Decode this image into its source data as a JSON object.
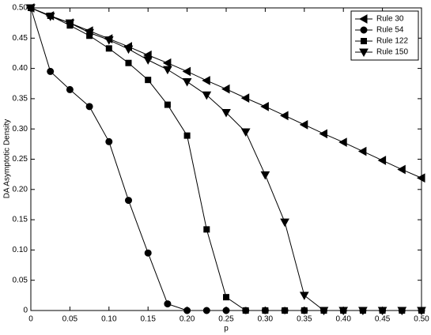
{
  "chart_data": {
    "type": "line",
    "xlabel": "p",
    "ylabel": "DA Asymptotic Density",
    "x": [
      0,
      0.025,
      0.05,
      0.075,
      0.1,
      0.125,
      0.15,
      0.175,
      0.2,
      0.225,
      0.25,
      0.275,
      0.3,
      0.325,
      0.35,
      0.375,
      0.4,
      0.425,
      0.45,
      0.475,
      0.5
    ],
    "series": [
      {
        "name": "Rule 30",
        "color": "#000000",
        "marker": "triangle-left",
        "values": [
          0.5,
          0.487,
          0.475,
          0.462,
          0.449,
          0.436,
          0.422,
          0.409,
          0.395,
          0.38,
          0.366,
          0.351,
          0.337,
          0.322,
          0.307,
          0.292,
          0.278,
          0.263,
          0.248,
          0.233,
          0.219
        ]
      },
      {
        "name": "Rule 54",
        "color": "#000000",
        "marker": "circle",
        "values": [
          0.5,
          0.395,
          0.365,
          0.337,
          0.279,
          0.182,
          0.095,
          0.011,
          0,
          0,
          0,
          0,
          0,
          0,
          0,
          0,
          0,
          0,
          0,
          0,
          0
        ]
      },
      {
        "name": "Rule 122",
        "color": "#000000",
        "marker": "square",
        "values": [
          0.5,
          0.487,
          0.471,
          0.454,
          0.433,
          0.409,
          0.381,
          0.34,
          0.289,
          0.134,
          0.022,
          0,
          0,
          0,
          0,
          0,
          0,
          0,
          0,
          0,
          0
        ]
      },
      {
        "name": "Rule 150",
        "color": "#000000",
        "marker": "triangle-down",
        "values": [
          0.5,
          0.486,
          0.475,
          0.459,
          0.447,
          0.432,
          0.414,
          0.398,
          0.378,
          0.356,
          0.327,
          0.295,
          0.224,
          0.146,
          0.025,
          0,
          0,
          0,
          0,
          0,
          0
        ]
      }
    ],
    "xlim": [
      0,
      0.5
    ],
    "xticks": [
      0,
      0.05,
      {
        "value": 0.1,
        "label": "0.10"
      },
      0.15,
      {
        "value": 0.2,
        "label": "0.20"
      },
      0.25,
      {
        "value": 0.3,
        "label": "0.30"
      },
      0.35,
      {
        "value": 0.4,
        "label": "0.40"
      },
      0.45,
      {
        "value": 0.5,
        "label": "0.50"
      }
    ],
    "ylim": [
      0,
      0.5
    ],
    "yticks": [
      0,
      0.05,
      {
        "value": 0.1,
        "label": "0.10"
      },
      0.15,
      {
        "value": 0.2,
        "label": "0.20"
      },
      0.25,
      {
        "value": 0.3,
        "label": "0.30"
      },
      0.35,
      {
        "value": 0.4,
        "label": "0.40"
      },
      0.45,
      {
        "value": 0.5,
        "label": "0.50"
      }
    ],
    "grid": false,
    "legend": "upper right"
  }
}
